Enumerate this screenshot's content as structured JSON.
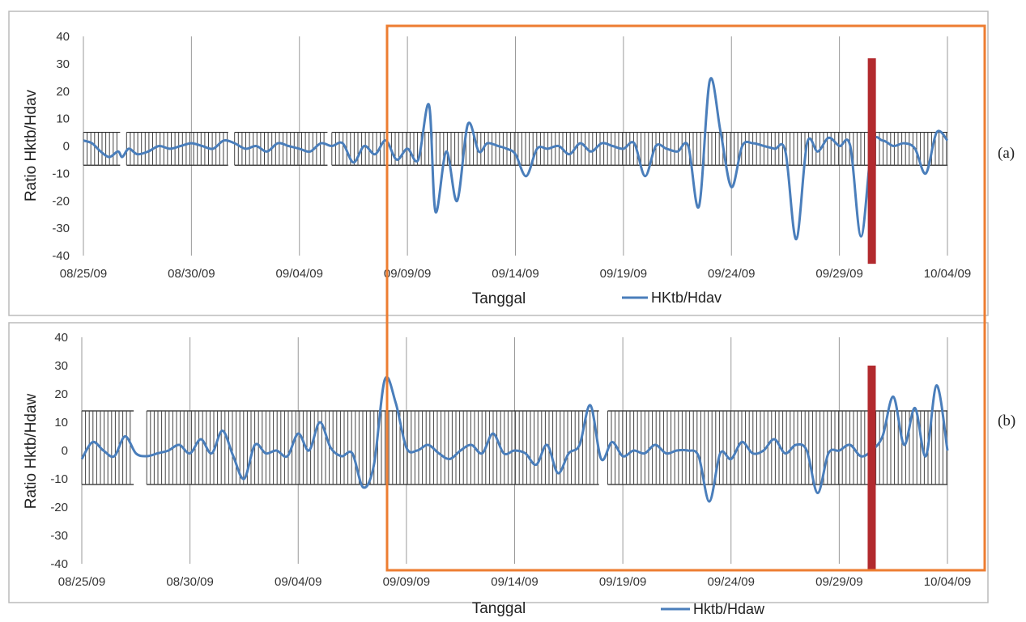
{
  "chart_data": [
    {
      "type": "line",
      "panel_label": "(a)",
      "xlabel": "Tanggal",
      "ylabel": "Ratio Hktb/Hdav",
      "ylim": [
        -40,
        40
      ],
      "yticks": [
        "40",
        "30",
        "20",
        "10",
        "0",
        "-10",
        "-20",
        "-30",
        "-40"
      ],
      "xticks": [
        "08/25/09",
        "08/30/09",
        "09/04/09",
        "09/09/09",
        "09/14/09",
        "09/19/09",
        "09/24/09",
        "09/29/09",
        "10/04/09"
      ],
      "xrange_days": [
        "2009-08-25",
        "2009-10-04"
      ],
      "grid": "vertical",
      "legend": {
        "label": "HKtb/Hdav",
        "placement": "bottom-center"
      },
      "threshold_band": {
        "upper": 5,
        "lower": -7,
        "segments": [
          [
            "2009-08-25",
            "2009-08-26.7"
          ],
          [
            "2009-08-27",
            "2009-08-31.7"
          ],
          [
            "2009-09-01",
            "2009-09-05.3"
          ],
          [
            "2009-09-05.5",
            "2009-10-04"
          ]
        ]
      },
      "marker_date": "2009-09-30.5",
      "series": [
        {
          "name": "HKtb/Hdav",
          "color": "#4a7ebb",
          "x": [
            0,
            0.4,
            0.8,
            1.2,
            1.6,
            1.8,
            2.1,
            2.5,
            3,
            3.5,
            4,
            4.5,
            5,
            5.5,
            6,
            6.5,
            7,
            7.5,
            8,
            8.5,
            9,
            9.5,
            10,
            10.5,
            11,
            11.5,
            12,
            12.5,
            13,
            13.5,
            14,
            14.5,
            15,
            15.5,
            16,
            16.3,
            16.8,
            17.3,
            17.8,
            18.3,
            18.7,
            19.2,
            19.6,
            20,
            20.5,
            21,
            21.5,
            22,
            22.5,
            23,
            23.5,
            24,
            24.5,
            25,
            25.5,
            26,
            26.5,
            27,
            27.5,
            28,
            28.5,
            29,
            29.5,
            30,
            30.5,
            31,
            31.5,
            32,
            32.5,
            33,
            33.5,
            34,
            34.5,
            35,
            35.5,
            36,
            36.5,
            37,
            37.5,
            38,
            38.5,
            39,
            39.5,
            40
          ],
          "y": [
            2,
            1,
            -2,
            -4,
            -2,
            -4,
            -1,
            -3,
            -2,
            0,
            -1,
            0,
            1,
            0,
            -1,
            2,
            1,
            -1,
            0,
            -2,
            1,
            0,
            -1,
            -2,
            1,
            0,
            1,
            -6,
            0,
            -3,
            2,
            -5,
            -1,
            -5,
            15,
            -24,
            -2,
            -20,
            8,
            -2,
            1,
            0,
            -1,
            -3,
            -11,
            -1,
            -1,
            0,
            -3,
            1,
            -2,
            1,
            0,
            -1,
            1,
            -11,
            0,
            -1,
            -2,
            0,
            -22,
            24,
            5,
            -15,
            0,
            1,
            0,
            -1,
            -2,
            -34,
            1,
            -2,
            3,
            0,
            0,
            -33,
            0,
            2,
            0,
            1,
            -1,
            -10,
            5,
            2
          ]
        }
      ]
    },
    {
      "type": "line",
      "panel_label": "(b)",
      "xlabel": "Tanggal",
      "ylabel": "Ratio Hktb/Hdaw",
      "ylim": [
        -40,
        40
      ],
      "yticks": [
        "40",
        "30",
        "20",
        "10",
        "0",
        "-10",
        "-20",
        "-30",
        "-40"
      ],
      "xticks": [
        "08/25/09",
        "08/30/09",
        "09/04/09",
        "09/09/09",
        "09/14/09",
        "09/19/09",
        "09/24/09",
        "09/29/09",
        "10/04/09"
      ],
      "xrange_days": [
        "2009-08-25",
        "2009-10-04"
      ],
      "grid": "vertical",
      "legend": {
        "label": "Hktb/Hdaw",
        "placement": "bottom-center"
      },
      "threshold_band": {
        "upper": 14,
        "lower": -12,
        "segments": [
          [
            "2009-08-25",
            "2009-08-27.4"
          ],
          [
            "2009-08-28",
            "2009-09-17.9"
          ],
          [
            "2009-09-18.3",
            "2009-10-04"
          ]
        ]
      },
      "marker_date": "2009-09-30.5",
      "series": [
        {
          "name": "Hktb/Hdaw",
          "color": "#4a7ebb",
          "x": [
            0,
            0.5,
            1,
            1.5,
            2,
            2.5,
            3,
            3.5,
            4,
            4.5,
            5,
            5.5,
            6,
            6.5,
            7,
            7.5,
            8,
            8.5,
            9,
            9.5,
            10,
            10.5,
            11,
            11.5,
            12,
            12.5,
            13,
            13.5,
            14,
            14.5,
            15,
            15.5,
            16,
            16.5,
            17,
            17.5,
            18,
            18.5,
            19,
            19.5,
            20,
            20.5,
            21,
            21.5,
            22,
            22.5,
            23,
            23.5,
            24,
            24.5,
            25,
            25.5,
            26,
            26.5,
            27,
            27.5,
            28,
            28.5,
            29,
            29.5,
            30,
            30.5,
            31,
            31.5,
            32,
            32.5,
            33,
            33.5,
            34,
            34.5,
            35,
            35.5,
            36,
            36.5,
            37,
            37.5,
            38,
            38.5,
            39,
            39.5,
            40
          ],
          "y": [
            -3,
            3,
            0,
            -2,
            5,
            -1,
            -2,
            -1,
            0,
            2,
            -1,
            4,
            -1,
            7,
            -2,
            -10,
            2,
            -1,
            0,
            -2,
            6,
            0,
            10,
            1,
            -2,
            -1,
            -13,
            -5,
            25,
            17,
            1,
            0,
            2,
            -1,
            -3,
            0,
            2,
            -1,
            6,
            -1,
            0,
            -1,
            -5,
            2,
            -8,
            -1,
            2,
            16,
            -3,
            3,
            -2,
            0,
            -1,
            2,
            -1,
            0,
            0,
            -2,
            -18,
            -1,
            -3,
            3,
            -1,
            0,
            4,
            -1,
            2,
            0,
            -15,
            -1,
            0,
            2,
            -2,
            0,
            5,
            19,
            2,
            15,
            -2,
            23,
            0
          ]
        }
      ]
    }
  ]
}
